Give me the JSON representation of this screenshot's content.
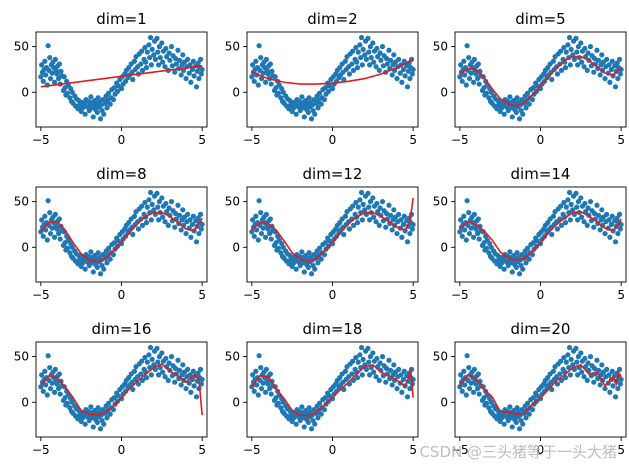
{
  "chart_data": {
    "type": "scatter",
    "layout_grid": "3x3",
    "x_range": [
      -5.3,
      5.3
    ],
    "y_range": [
      -38,
      66
    ],
    "x_ticks": [
      -5,
      0,
      5
    ],
    "y_ticks": [
      0,
      50
    ],
    "x_tick_labels": [
      "−5",
      "0",
      "5"
    ],
    "y_tick_labels": [
      "0",
      "50"
    ],
    "point_color": "#1f77b4",
    "fit_color": "#e41a1c",
    "scatter_points": [
      [
        -5.0,
        17
      ],
      [
        -4.95,
        30
      ],
      [
        -4.9,
        22
      ],
      [
        -4.85,
        12
      ],
      [
        -4.8,
        25
      ],
      [
        -4.75,
        34
      ],
      [
        -4.7,
        19
      ],
      [
        -4.65,
        27
      ],
      [
        -4.6,
        8
      ],
      [
        -4.55,
        51
      ],
      [
        -4.5,
        24
      ],
      [
        -4.45,
        38
      ],
      [
        -4.4,
        15
      ],
      [
        -4.35,
        30
      ],
      [
        -4.3,
        21
      ],
      [
        -4.25,
        33
      ],
      [
        -4.2,
        27
      ],
      [
        -4.15,
        11
      ],
      [
        -4.1,
        36
      ],
      [
        -4.05,
        24
      ],
      [
        -4.0,
        20
      ],
      [
        -3.95,
        29
      ],
      [
        -3.9,
        15
      ],
      [
        -3.85,
        31
      ],
      [
        -3.8,
        9
      ],
      [
        -3.75,
        23
      ],
      [
        -3.7,
        18
      ],
      [
        -3.6,
        2
      ],
      [
        -3.55,
        17
      ],
      [
        -3.5,
        5
      ],
      [
        -3.45,
        -3
      ],
      [
        -3.4,
        12
      ],
      [
        -3.35,
        -1
      ],
      [
        -3.3,
        8
      ],
      [
        -3.2,
        -6
      ],
      [
        -3.15,
        4
      ],
      [
        -3.1,
        -10
      ],
      [
        -3.05,
        0
      ],
      [
        -3.0,
        -12
      ],
      [
        -2.9,
        -4
      ],
      [
        -2.85,
        -15
      ],
      [
        -2.8,
        -7
      ],
      [
        -2.7,
        -18
      ],
      [
        -2.65,
        -9
      ],
      [
        -2.6,
        -14
      ],
      [
        -2.5,
        -21
      ],
      [
        -2.45,
        -11
      ],
      [
        -2.4,
        -17
      ],
      [
        -2.3,
        -13
      ],
      [
        -2.25,
        -24
      ],
      [
        -2.2,
        -8
      ],
      [
        -2.1,
        -16
      ],
      [
        -2.05,
        -10
      ],
      [
        -2.0,
        -20
      ],
      [
        -1.95,
        -14
      ],
      [
        -1.9,
        -5
      ],
      [
        -1.85,
        -17
      ],
      [
        -1.8,
        -11
      ],
      [
        -1.75,
        -27
      ],
      [
        -1.7,
        -15
      ],
      [
        -1.65,
        -9
      ],
      [
        -1.6,
        -19
      ],
      [
        -1.55,
        -13
      ],
      [
        -1.5,
        -22
      ],
      [
        -1.45,
        -6
      ],
      [
        -1.4,
        -16
      ],
      [
        -1.35,
        -11
      ],
      [
        -1.3,
        -29
      ],
      [
        -1.25,
        -14
      ],
      [
        -1.2,
        -20
      ],
      [
        -1.15,
        -8
      ],
      [
        -1.1,
        -24
      ],
      [
        -1.0,
        -12
      ],
      [
        -0.95,
        -4
      ],
      [
        -0.9,
        -17
      ],
      [
        -0.85,
        -9
      ],
      [
        -0.8,
        -1
      ],
      [
        -0.7,
        -13
      ],
      [
        -0.65,
        -6
      ],
      [
        -0.6,
        3
      ],
      [
        -0.5,
        -8
      ],
      [
        -0.45,
        5
      ],
      [
        -0.4,
        -2
      ],
      [
        -0.3,
        10
      ],
      [
        -0.25,
        1
      ],
      [
        -0.2,
        7
      ],
      [
        -0.1,
        14
      ],
      [
        0.0,
        4
      ],
      [
        0.05,
        17
      ],
      [
        0.1,
        9
      ],
      [
        0.2,
        20
      ],
      [
        0.25,
        12
      ],
      [
        0.3,
        24
      ],
      [
        0.4,
        16
      ],
      [
        0.45,
        27
      ],
      [
        0.5,
        19
      ],
      [
        0.6,
        31
      ],
      [
        0.65,
        22
      ],
      [
        0.7,
        14
      ],
      [
        0.8,
        34
      ],
      [
        0.85,
        25
      ],
      [
        0.9,
        39
      ],
      [
        1.0,
        28
      ],
      [
        1.05,
        20
      ],
      [
        1.1,
        42
      ],
      [
        1.2,
        31
      ],
      [
        1.25,
        45
      ],
      [
        1.3,
        24
      ],
      [
        1.4,
        36
      ],
      [
        1.45,
        49
      ],
      [
        1.5,
        33
      ],
      [
        1.55,
        27
      ],
      [
        1.6,
        44
      ],
      [
        1.7,
        52
      ],
      [
        1.75,
        38
      ],
      [
        1.8,
        60
      ],
      [
        1.85,
        30
      ],
      [
        1.9,
        47
      ],
      [
        2.0,
        41
      ],
      [
        2.05,
        56
      ],
      [
        2.1,
        36
      ],
      [
        2.2,
        59
      ],
      [
        2.25,
        44
      ],
      [
        2.3,
        30
      ],
      [
        2.35,
        50
      ],
      [
        2.4,
        38
      ],
      [
        2.5,
        54
      ],
      [
        2.55,
        33
      ],
      [
        2.6,
        45
      ],
      [
        2.7,
        28
      ],
      [
        2.75,
        48
      ],
      [
        2.8,
        39
      ],
      [
        2.9,
        24
      ],
      [
        2.95,
        43
      ],
      [
        3.0,
        35
      ],
      [
        3.1,
        50
      ],
      [
        3.15,
        29
      ],
      [
        3.2,
        40
      ],
      [
        3.3,
        22
      ],
      [
        3.35,
        37
      ],
      [
        3.4,
        31
      ],
      [
        3.5,
        46
      ],
      [
        3.55,
        26
      ],
      [
        3.6,
        35
      ],
      [
        3.7,
        19
      ],
      [
        3.75,
        30
      ],
      [
        3.8,
        41
      ],
      [
        3.85,
        24
      ],
      [
        3.9,
        33
      ],
      [
        4.0,
        15
      ],
      [
        4.05,
        28
      ],
      [
        4.1,
        36
      ],
      [
        4.2,
        21
      ],
      [
        4.25,
        30
      ],
      [
        4.3,
        11
      ],
      [
        4.4,
        25
      ],
      [
        4.45,
        34
      ],
      [
        4.5,
        18
      ],
      [
        4.6,
        29
      ],
      [
        4.65,
        6
      ],
      [
        4.7,
        23
      ],
      [
        4.75,
        32
      ],
      [
        4.8,
        15
      ],
      [
        4.85,
        27
      ],
      [
        4.9,
        36
      ],
      [
        4.95,
        20
      ],
      [
        5.0,
        25
      ]
    ],
    "panels": [
      {
        "title": "dim=1",
        "fit_x": [
          -5,
          5
        ],
        "fit_y": [
          6,
          29
        ]
      },
      {
        "title": "dim=2",
        "fit_x": [
          -5,
          -4,
          -3,
          -2,
          -1,
          0,
          1,
          2,
          3,
          4,
          5
        ],
        "fit_y": [
          22,
          15,
          11,
          9,
          9,
          10,
          12,
          15,
          20,
          27,
          36
        ]
      },
      {
        "title": "dim=5",
        "fit_x": [
          -5,
          -4.5,
          -4,
          -3.5,
          -3,
          -2.5,
          -2,
          -1.5,
          -1,
          -0.5,
          0,
          0.5,
          1,
          1.5,
          2,
          2.5,
          3,
          3.5,
          4,
          4.5,
          5
        ],
        "fit_y": [
          20,
          26,
          25,
          16,
          4,
          -7,
          -13,
          -15,
          -11,
          -3,
          7,
          17,
          27,
          35,
          39,
          39,
          35,
          28,
          21,
          19,
          26
        ]
      },
      {
        "title": "dim=8",
        "fit_x": [
          -5,
          -4.5,
          -4,
          -3.5,
          -3,
          -2.5,
          -2,
          -1.5,
          -1,
          -0.5,
          0,
          0.5,
          1,
          1.5,
          2,
          2.5,
          3,
          3.5,
          4,
          4.5,
          5
        ],
        "fit_y": [
          17,
          27,
          28,
          19,
          5,
          -7,
          -14,
          -16,
          -12,
          -4,
          6,
          16,
          26,
          34,
          38,
          38,
          34,
          27,
          20,
          18,
          32
        ]
      },
      {
        "title": "dim=12",
        "fit_x": [
          -5,
          -4.5,
          -4,
          -3.5,
          -3,
          -2.5,
          -2,
          -1.5,
          -1,
          -0.5,
          0,
          0.5,
          1,
          1.5,
          2,
          2.5,
          3,
          3.5,
          4,
          4.5,
          4.8,
          5
        ],
        "fit_y": [
          19,
          27,
          26,
          19,
          7,
          -6,
          -13,
          -16,
          -12,
          -4,
          6,
          16,
          26,
          33,
          38,
          38,
          34,
          28,
          22,
          19,
          28,
          54
        ]
      },
      {
        "title": "dim=14",
        "fit_x": [
          -5,
          -4.5,
          -4,
          -3.5,
          -3,
          -2.5,
          -2,
          -1.5,
          -1,
          -0.5,
          0,
          0.5,
          1,
          1.5,
          2,
          2.5,
          3,
          3.5,
          4,
          4.5,
          4.8,
          5
        ],
        "fit_y": [
          20,
          28,
          25,
          18,
          8,
          -5,
          -12,
          -14,
          -12,
          -5,
          5,
          16,
          25,
          32,
          38,
          39,
          34,
          28,
          21,
          18,
          24,
          31
        ]
      },
      {
        "title": "dim=16",
        "fit_x": [
          -5,
          -4.5,
          -4,
          -3.5,
          -3,
          -2.5,
          -2,
          -1.5,
          -1,
          -0.5,
          0,
          0.5,
          1,
          1.5,
          2,
          2.5,
          3,
          3.5,
          4,
          4.5,
          4.8,
          5
        ],
        "fit_y": [
          18,
          29,
          27,
          17,
          5,
          -9,
          -13,
          -14,
          -11,
          -4,
          5,
          15,
          23,
          31,
          38,
          42,
          34,
          29,
          22,
          30,
          25,
          -14
        ]
      },
      {
        "title": "dim=18",
        "fit_x": [
          -5,
          -4.5,
          -4,
          -3.5,
          -3,
          -2.5,
          -2,
          -1.5,
          -1,
          -0.5,
          0,
          0.5,
          1,
          1.5,
          2,
          2.5,
          3,
          3.5,
          4,
          4.5,
          4.7,
          4.85,
          5
        ],
        "fit_y": [
          17,
          29,
          28,
          15,
          4,
          -9,
          -14,
          -15,
          -11,
          -3,
          6,
          14,
          22,
          31,
          39,
          41,
          33,
          29,
          24,
          18,
          26,
          35,
          5
        ]
      },
      {
        "title": "dim=20",
        "fit_x": [
          -5,
          -4.5,
          -4,
          -3.5,
          -3,
          -2.5,
          -2,
          -1.5,
          -1,
          -0.5,
          0,
          0.5,
          1,
          1.5,
          2,
          2.5,
          3,
          3.5,
          4,
          4.5,
          4.7,
          4.85,
          5
        ],
        "fit_y": [
          18,
          30,
          26,
          14,
          6,
          -10,
          -11,
          -13,
          -12,
          -2,
          5,
          14,
          24,
          30,
          38,
          41,
          31,
          33,
          18,
          28,
          20,
          32,
          28
        ]
      }
    ]
  },
  "watermark": "CSDN @三头猪等于一头大猪"
}
